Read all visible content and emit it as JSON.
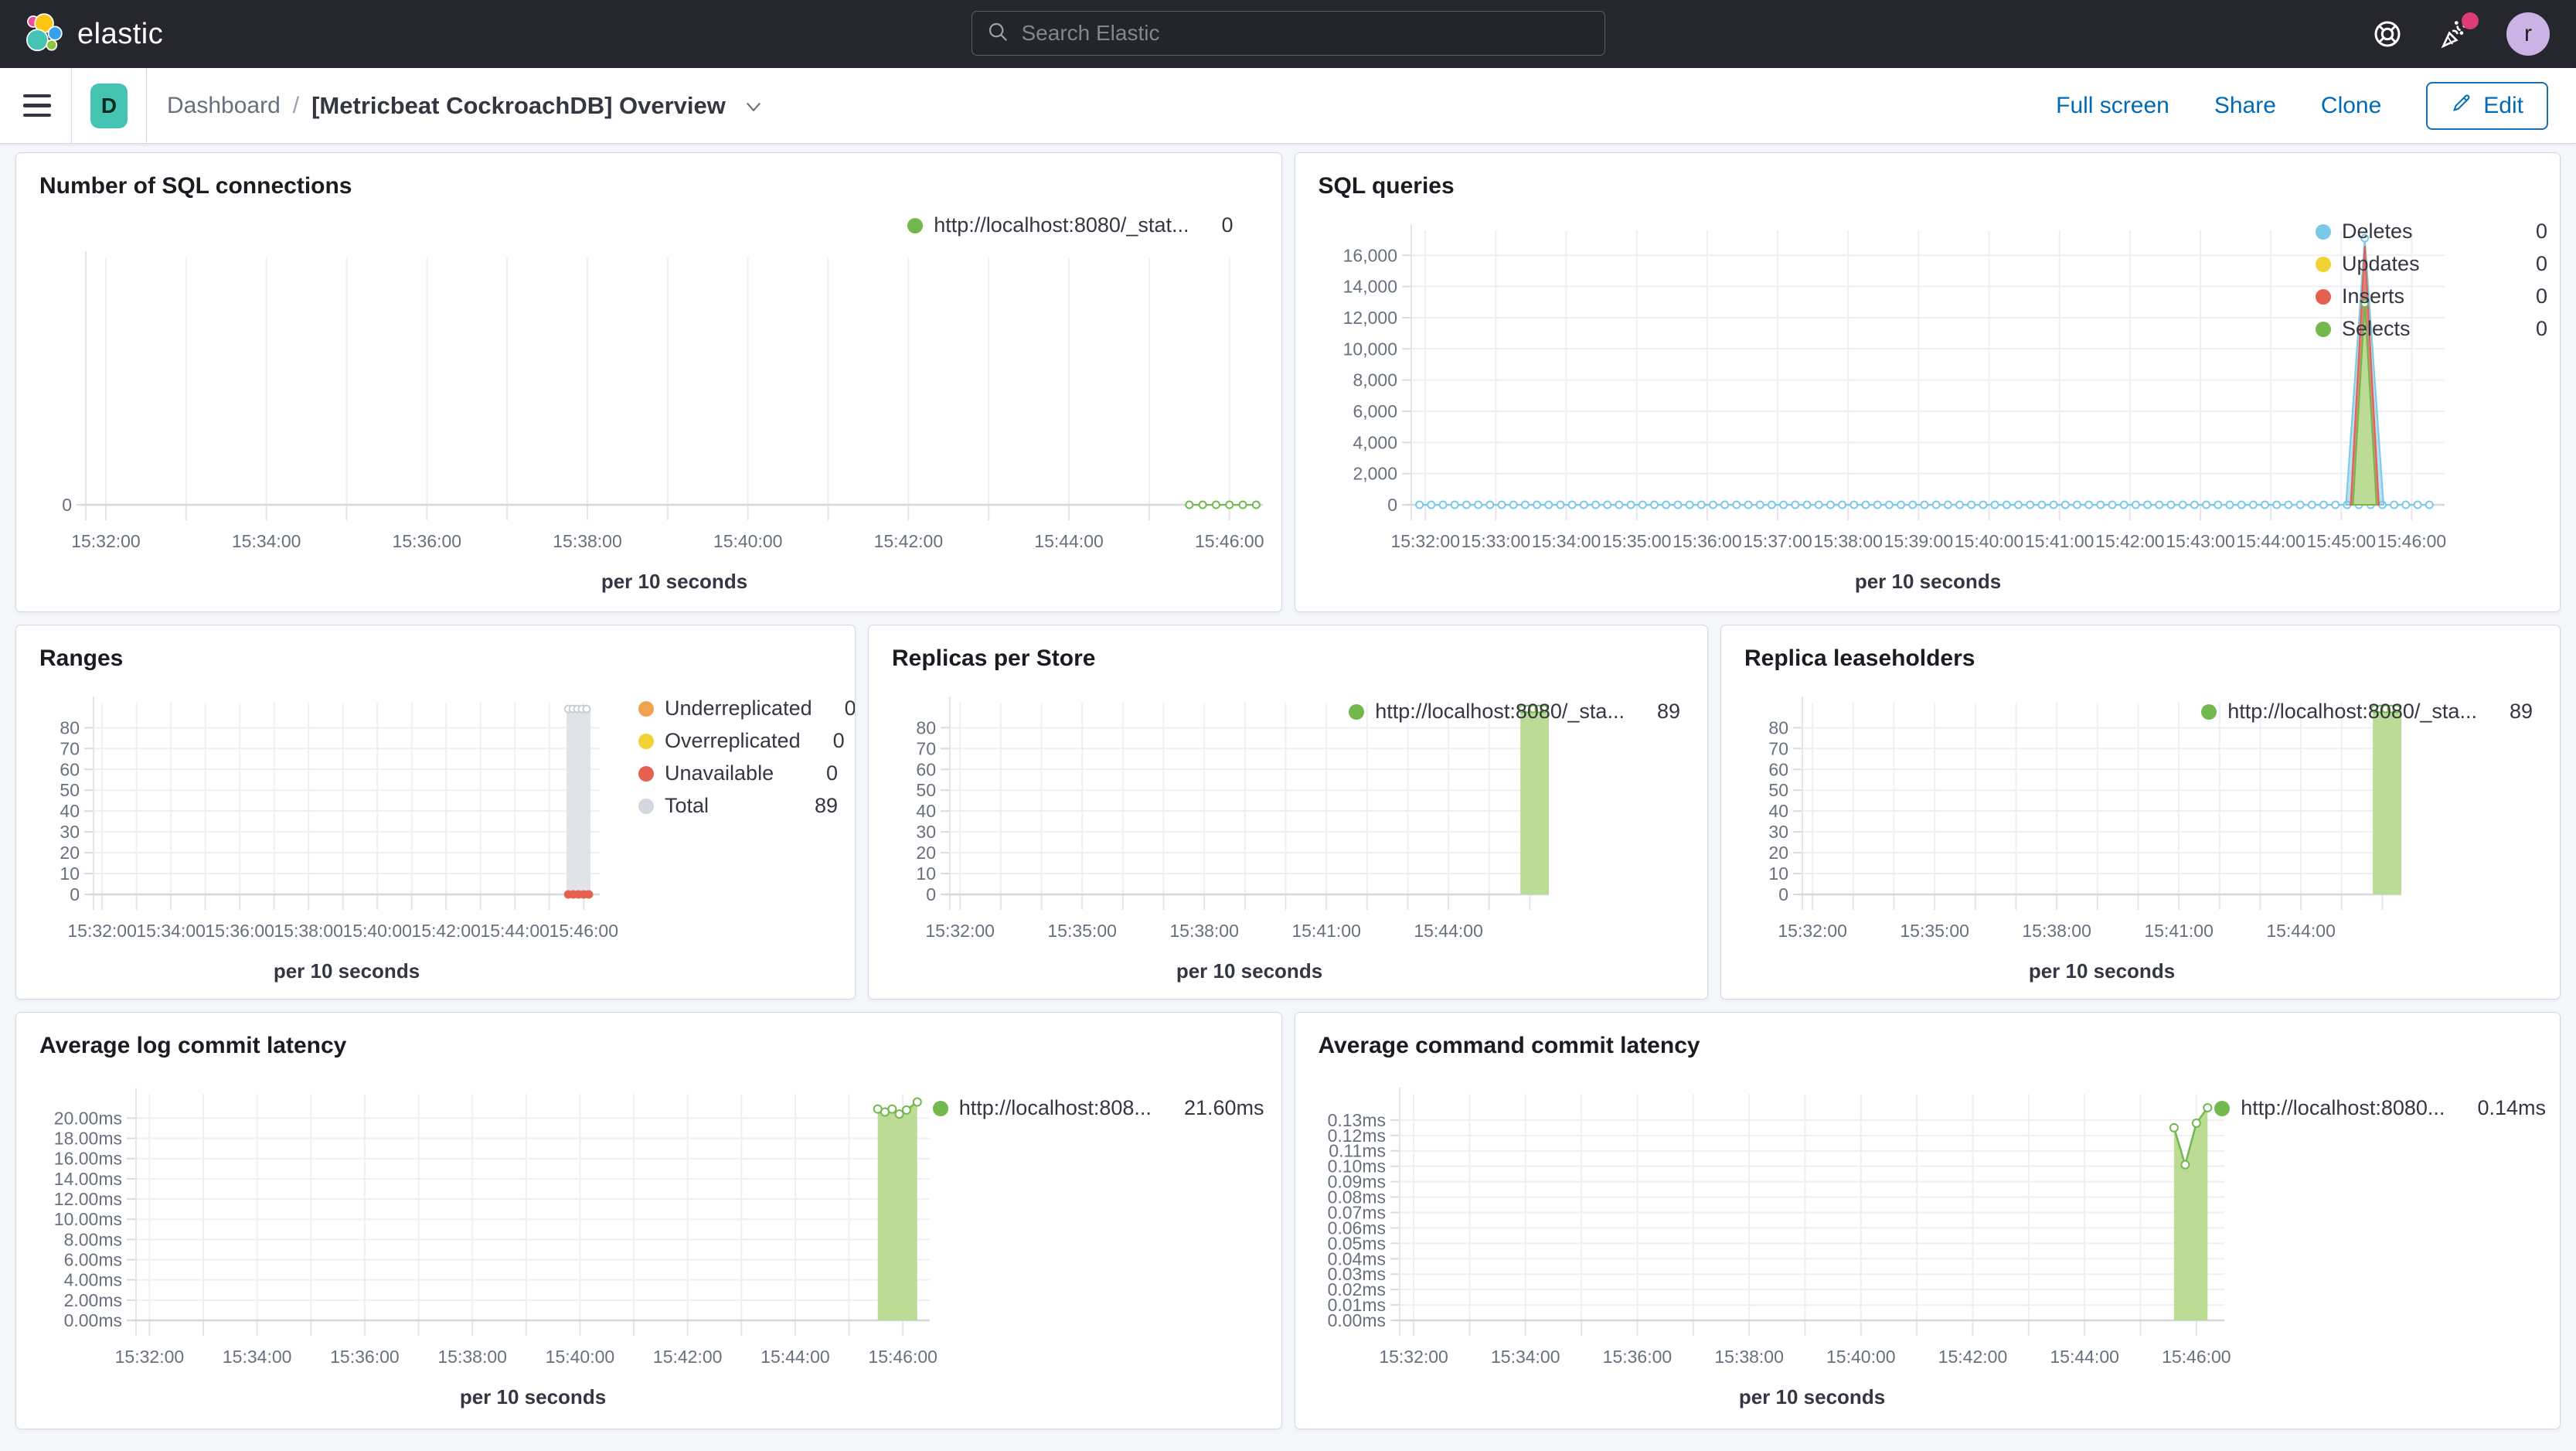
{
  "header": {
    "logo_text": "elastic",
    "search_placeholder": "Search Elastic",
    "avatar_initial": "r"
  },
  "toolbar": {
    "breadcrumb_root": "Dashboard",
    "breadcrumb_separator": "/",
    "title": "[Metricbeat CockroachDB] Overview",
    "space_badge": "D",
    "full_screen_label": "Full screen",
    "share_label": "Share",
    "clone_label": "Clone",
    "edit_label": "Edit"
  },
  "colors": {
    "green": "#73B84D",
    "green_fill": "#BCDC96",
    "blue": "#7BC9E8",
    "blue_fill": "rgba(123,201,232,0.55)",
    "red": "#E4614F",
    "red_fill": "rgba(228,97,79,0.7)",
    "yellow": "#F1D335",
    "orange": "#F0A34C",
    "gray": "#C6CBD3",
    "gray_fill": "#E0E3E8",
    "grayLegend": "#D3D7DE",
    "accent": "#006BB4",
    "teal": "#45C3B3",
    "header_bg": "#25262E",
    "page_bg": "#F5F7FA",
    "panel_border": "#D3DAE6"
  },
  "chart_data": [
    {
      "id": "number-of-sql-connections",
      "type": "line",
      "title": "Number of SQL connections",
      "xlabel": "per 10 seconds",
      "x_domain_sec": [
        -15,
        865
      ],
      "x_ticks": [
        {
          "t": 0,
          "label": "15:32:00"
        },
        {
          "t": 120,
          "label": "15:34:00"
        },
        {
          "t": 240,
          "label": "15:36:00"
        },
        {
          "t": 360,
          "label": "15:38:00"
        },
        {
          "t": 480,
          "label": "15:40:00"
        },
        {
          "t": 600,
          "label": "15:42:00"
        },
        {
          "t": 720,
          "label": "15:44:00"
        },
        {
          "t": 840,
          "label": "15:46:00"
        }
      ],
      "ylim": [
        0,
        1
      ],
      "y_ticks": [
        {
          "v": 0,
          "label": "0"
        }
      ],
      "series": [
        {
          "name": "http://localhost:8080/_stat...",
          "type": "dotline",
          "color": "green",
          "y": 0,
          "t_start": 810,
          "t_end": 860,
          "step": 10
        }
      ],
      "legend": [
        {
          "label": "http://localhost:8080/_stat...",
          "value": "0",
          "color": "green"
        }
      ]
    },
    {
      "id": "sql-queries",
      "type": "line",
      "title": "SQL queries",
      "xlabel": "per 10 seconds",
      "x_domain_sec": [
        -12,
        868
      ],
      "x_ticks": [
        {
          "t": 0,
          "label": "15:32:00"
        },
        {
          "t": 60,
          "label": "15:33:00"
        },
        {
          "t": 120,
          "label": "15:34:00"
        },
        {
          "t": 180,
          "label": "15:35:00"
        },
        {
          "t": 240,
          "label": "15:36:00"
        },
        {
          "t": 300,
          "label": "15:37:00"
        },
        {
          "t": 360,
          "label": "15:38:00"
        },
        {
          "t": 420,
          "label": "15:39:00"
        },
        {
          "t": 480,
          "label": "15:40:00"
        },
        {
          "t": 540,
          "label": "15:41:00"
        },
        {
          "t": 600,
          "label": "15:42:00"
        },
        {
          "t": 660,
          "label": "15:43:00"
        },
        {
          "t": 720,
          "label": "15:44:00"
        },
        {
          "t": 780,
          "label": "15:45:00"
        },
        {
          "t": 840,
          "label": "15:46:00"
        }
      ],
      "ylim": [
        0,
        17600
      ],
      "y_ticks": [
        {
          "v": 0,
          "label": "0"
        },
        {
          "v": 2000,
          "label": "2,000"
        },
        {
          "v": 4000,
          "label": "4,000"
        },
        {
          "v": 6000,
          "label": "6,000"
        },
        {
          "v": 8000,
          "label": "8,000"
        },
        {
          "v": 10000,
          "label": "10,000"
        },
        {
          "v": 12000,
          "label": "12,000"
        },
        {
          "v": 14000,
          "label": "14,000"
        },
        {
          "v": 16000,
          "label": "16,000"
        }
      ],
      "series": [
        {
          "name": "Deletes",
          "type": "dotline",
          "color": "blue",
          "y": 0,
          "t_start": -5,
          "t_end": 855,
          "step": 10
        },
        {
          "name": "Deletes",
          "type": "spike",
          "color": "blue",
          "base_start": 784,
          "base_end": 816,
          "apex_t": 800,
          "apex_v": 17100,
          "marker": true
        },
        {
          "name": "Inserts",
          "type": "spike",
          "color": "red",
          "base_start": 788,
          "base_end": 812,
          "apex_t": 800,
          "apex_v": 16600,
          "marker": false
        },
        {
          "name": "Selects",
          "type": "spike",
          "color": "green",
          "base_start": 790,
          "base_end": 810,
          "apex_t": 800,
          "apex_v": 12900,
          "marker": true
        }
      ],
      "legend": [
        {
          "label": "Deletes",
          "value": "0",
          "color": "blue"
        },
        {
          "label": "Updates",
          "value": "0",
          "color": "yellow"
        },
        {
          "label": "Inserts",
          "value": "0",
          "color": "red"
        },
        {
          "label": "Selects",
          "value": "0",
          "color": "green"
        }
      ]
    },
    {
      "id": "ranges",
      "type": "bar",
      "title": "Ranges",
      "xlabel": "per 10 seconds",
      "x_domain_sec": [
        -15,
        868
      ],
      "x_ticks": [
        {
          "t": 0,
          "label": "15:32:00"
        },
        {
          "t": 120,
          "label": "15:34:00"
        },
        {
          "t": 240,
          "label": "15:36:00"
        },
        {
          "t": 360,
          "label": "15:38:00"
        },
        {
          "t": 480,
          "label": "15:40:00"
        },
        {
          "t": 600,
          "label": "15:42:00"
        },
        {
          "t": 720,
          "label": "15:44:00"
        },
        {
          "t": 840,
          "label": "15:46:00"
        }
      ],
      "ylim": [
        0,
        92
      ],
      "y_ticks": [
        {
          "v": 0,
          "label": "0"
        },
        {
          "v": 10,
          "label": "10"
        },
        {
          "v": 20,
          "label": "20"
        },
        {
          "v": 30,
          "label": "30"
        },
        {
          "v": 40,
          "label": "40"
        },
        {
          "v": 50,
          "label": "50"
        },
        {
          "v": 60,
          "label": "60"
        },
        {
          "v": 70,
          "label": "70"
        },
        {
          "v": 80,
          "label": "80"
        }
      ],
      "series": [
        {
          "name": "Total",
          "type": "bar",
          "color": "gray",
          "t_start": 810,
          "t_end": 852,
          "value": 89
        },
        {
          "name": "Unavailable",
          "type": "dots",
          "color": "red",
          "y": 0,
          "t_start": 813,
          "t_end": 849,
          "step": 9
        }
      ],
      "legend": [
        {
          "label": "Underreplicated",
          "value": "0",
          "color": "orange"
        },
        {
          "label": "Overreplicated",
          "value": "0",
          "color": "yellow"
        },
        {
          "label": "Unavailable",
          "value": "0",
          "color": "red"
        },
        {
          "label": "Total",
          "value": "89",
          "color": "grayLegend"
        }
      ]
    },
    {
      "id": "replicas-per-store",
      "type": "bar",
      "title": "Replicas per Store",
      "xlabel": "per 10 seconds",
      "x_domain_sec": [
        -15,
        868
      ],
      "x_ticks": [
        {
          "t": 0,
          "label": "15:32:00"
        },
        {
          "t": 180,
          "label": "15:35:00"
        },
        {
          "t": 360,
          "label": "15:38:00"
        },
        {
          "t": 540,
          "label": "15:41:00"
        },
        {
          "t": 720,
          "label": "15:44:00"
        }
      ],
      "ylim": [
        0,
        92
      ],
      "y_ticks": [
        {
          "v": 0,
          "label": "0"
        },
        {
          "v": 10,
          "label": "10"
        },
        {
          "v": 20,
          "label": "20"
        },
        {
          "v": 30,
          "label": "30"
        },
        {
          "v": 40,
          "label": "40"
        },
        {
          "v": 50,
          "label": "50"
        },
        {
          "v": 60,
          "label": "60"
        },
        {
          "v": 70,
          "label": "70"
        },
        {
          "v": 80,
          "label": "80"
        }
      ],
      "series": [
        {
          "name": "http://localhost:8080/_sta...",
          "type": "bar",
          "color": "green",
          "t_start": 826,
          "t_end": 868,
          "value": 89
        }
      ],
      "legend": [
        {
          "label": "http://localhost:8080/_sta...",
          "value": "89",
          "color": "green"
        }
      ]
    },
    {
      "id": "replica-leaseholders",
      "type": "bar",
      "title": "Replica leaseholders",
      "xlabel": "per 10 seconds",
      "x_domain_sec": [
        -15,
        868
      ],
      "x_ticks": [
        {
          "t": 0,
          "label": "15:32:00"
        },
        {
          "t": 180,
          "label": "15:35:00"
        },
        {
          "t": 360,
          "label": "15:38:00"
        },
        {
          "t": 540,
          "label": "15:41:00"
        },
        {
          "t": 720,
          "label": "15:44:00"
        }
      ],
      "ylim": [
        0,
        92
      ],
      "y_ticks": [
        {
          "v": 0,
          "label": "0"
        },
        {
          "v": 10,
          "label": "10"
        },
        {
          "v": 20,
          "label": "20"
        },
        {
          "v": 30,
          "label": "30"
        },
        {
          "v": 40,
          "label": "40"
        },
        {
          "v": 50,
          "label": "50"
        },
        {
          "v": 60,
          "label": "60"
        },
        {
          "v": 70,
          "label": "70"
        },
        {
          "v": 80,
          "label": "80"
        }
      ],
      "series": [
        {
          "name": "http://localhost:8080/_sta...",
          "type": "bar",
          "color": "green",
          "t_start": 826,
          "t_end": 868,
          "value": 89
        }
      ],
      "legend": [
        {
          "label": "http://localhost:8080/_sta...",
          "value": "89",
          "color": "green"
        }
      ]
    },
    {
      "id": "average-log-commit-latency",
      "type": "area",
      "title": "Average log commit latency",
      "xlabel": "per 10 seconds",
      "x_domain_sec": [
        -15,
        870
      ],
      "x_ticks": [
        {
          "t": 0,
          "label": "15:32:00"
        },
        {
          "t": 120,
          "label": "15:34:00"
        },
        {
          "t": 240,
          "label": "15:36:00"
        },
        {
          "t": 360,
          "label": "15:38:00"
        },
        {
          "t": 480,
          "label": "15:40:00"
        },
        {
          "t": 600,
          "label": "15:42:00"
        },
        {
          "t": 720,
          "label": "15:44:00"
        },
        {
          "t": 840,
          "label": "15:46:00"
        }
      ],
      "ylim": [
        0,
        22.4
      ],
      "y_ticks": [
        {
          "v": 0,
          "label": "0.00ms"
        },
        {
          "v": 2,
          "label": "2.00ms"
        },
        {
          "v": 4,
          "label": "4.00ms"
        },
        {
          "v": 6,
          "label": "6.00ms"
        },
        {
          "v": 8,
          "label": "8.00ms"
        },
        {
          "v": 10,
          "label": "10.00ms"
        },
        {
          "v": 12,
          "label": "12.00ms"
        },
        {
          "v": 14,
          "label": "14.00ms"
        },
        {
          "v": 16,
          "label": "16.00ms"
        },
        {
          "v": 18,
          "label": "18.00ms"
        },
        {
          "v": 20,
          "label": "20.00ms"
        }
      ],
      "series": [
        {
          "name": "http://localhost:808...",
          "type": "area",
          "color": "green",
          "points": [
            [
              812,
              20.9
            ],
            [
              820,
              20.6
            ],
            [
              828,
              20.9
            ],
            [
              836,
              20.4
            ],
            [
              844,
              20.8
            ],
            [
              856,
              21.6
            ]
          ]
        }
      ],
      "legend": [
        {
          "label": "http://localhost:808...",
          "value": "21.60ms",
          "color": "green"
        }
      ]
    },
    {
      "id": "average-command-commit-latency",
      "type": "area",
      "title": "Average command commit latency",
      "xlabel": "per 10 seconds",
      "x_domain_sec": [
        -15,
        870
      ],
      "x_ticks": [
        {
          "t": 0,
          "label": "15:32:00"
        },
        {
          "t": 120,
          "label": "15:34:00"
        },
        {
          "t": 240,
          "label": "15:36:00"
        },
        {
          "t": 360,
          "label": "15:38:00"
        },
        {
          "t": 480,
          "label": "15:40:00"
        },
        {
          "t": 600,
          "label": "15:42:00"
        },
        {
          "t": 720,
          "label": "15:44:00"
        },
        {
          "t": 840,
          "label": "15:46:00"
        }
      ],
      "ylim": [
        0,
        0.147
      ],
      "y_ticks": [
        {
          "v": 0,
          "label": "0.00ms"
        },
        {
          "v": 0.01,
          "label": "0.01ms"
        },
        {
          "v": 0.02,
          "label": "0.02ms"
        },
        {
          "v": 0.03,
          "label": "0.03ms"
        },
        {
          "v": 0.04,
          "label": "0.04ms"
        },
        {
          "v": 0.05,
          "label": "0.05ms"
        },
        {
          "v": 0.06,
          "label": "0.06ms"
        },
        {
          "v": 0.07,
          "label": "0.07ms"
        },
        {
          "v": 0.08,
          "label": "0.08ms"
        },
        {
          "v": 0.09,
          "label": "0.09ms"
        },
        {
          "v": 0.1,
          "label": "0.10ms"
        },
        {
          "v": 0.11,
          "label": "0.11ms"
        },
        {
          "v": 0.12,
          "label": "0.12ms"
        },
        {
          "v": 0.13,
          "label": "0.13ms"
        }
      ],
      "series": [
        {
          "name": "http://localhost:8080...",
          "type": "area",
          "color": "green",
          "points": [
            [
              816,
              0.125
            ],
            [
              828,
              0.101
            ],
            [
              840,
              0.128
            ],
            [
              852,
              0.138
            ]
          ]
        }
      ],
      "legend": [
        {
          "label": "http://localhost:8080...",
          "value": "0.14ms",
          "color": "green"
        }
      ]
    }
  ]
}
